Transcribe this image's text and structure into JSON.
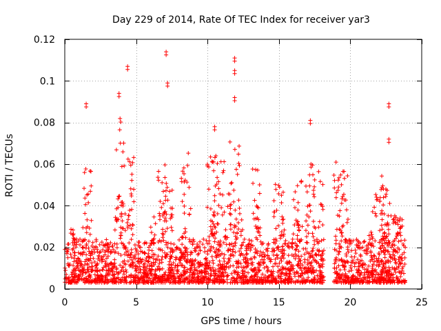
{
  "chart_data": {
    "type": "scatter",
    "title": "Day 229 of 2014, Rate Of TEC Index for receiver yar3",
    "xlabel": "GPS time / hours",
    "ylabel": "ROTI / TECUs",
    "xlim": [
      0,
      25
    ],
    "ylim": [
      0,
      0.12
    ],
    "xticks": [
      0,
      5,
      10,
      15,
      20,
      25
    ],
    "xtick_labels": [
      "0",
      "5",
      "10",
      "15",
      "20",
      "25"
    ],
    "yticks": [
      0,
      0.02,
      0.04,
      0.06,
      0.08,
      0.1,
      0.12
    ],
    "ytick_labels": [
      "0",
      "0.02",
      "0.04",
      "0.06",
      "0.08",
      "0.1",
      "0.12"
    ],
    "grid": true,
    "marker": "plus",
    "color": "#ff0000",
    "series": [
      {
        "name": "ROTI",
        "description": "dense red plus markers 0.002-0.035 TECU/s across 0-23.8 h with a data gap near 18.2-18.8 h",
        "peaks": [
          {
            "x": 1.5,
            "y": 0.089
          },
          {
            "x": 3.8,
            "y": 0.094
          },
          {
            "x": 4.4,
            "y": 0.107
          },
          {
            "x": 7.1,
            "y": 0.114
          },
          {
            "x": 7.2,
            "y": 0.099
          },
          {
            "x": 10.5,
            "y": 0.078
          },
          {
            "x": 11.9,
            "y": 0.111
          },
          {
            "x": 11.9,
            "y": 0.105
          },
          {
            "x": 11.9,
            "y": 0.092
          },
          {
            "x": 17.2,
            "y": 0.081
          },
          {
            "x": 22.7,
            "y": 0.089
          },
          {
            "x": 22.7,
            "y": 0.072
          }
        ]
      }
    ]
  }
}
